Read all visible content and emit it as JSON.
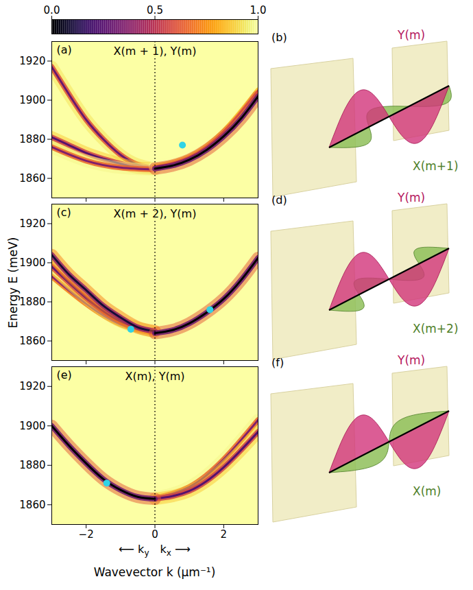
{
  "colorbar": {
    "range": [
      0,
      1
    ],
    "ticks": [
      {
        "value": 0,
        "label": "0.0"
      },
      {
        "value": 0.5,
        "label": "0.5"
      },
      {
        "value": 1,
        "label": "1.0"
      }
    ]
  },
  "y_label": "Energy E (meV)",
  "x_label": "Wavevector k (μm⁻¹)",
  "direction_labels": [
    {
      "text": "⟵ k",
      "subscript": "y"
    },
    {
      "text": "k",
      "subscript": "x",
      "suffix": " ⟶"
    }
  ],
  "chart_data": [
    {
      "type": "line",
      "label": "(a)",
      "title": "X(m + 1), Y(m)",
      "xlim": [
        -3,
        3
      ],
      "ylim": [
        1850,
        1930
      ],
      "xticks": [
        {
          "value": -2,
          "label": "−2"
        },
        0,
        2
      ],
      "yticks": [
        1860,
        1880,
        1900,
        1920
      ],
      "tick_labels": "y",
      "divider_x": 0,
      "curves": [
        {
          "intensity": 0.3,
          "points": [
            [
              -3,
              1917
            ],
            [
              -2.5,
              1903
            ],
            [
              -2,
              1890
            ],
            [
              -1.5,
              1880
            ],
            [
              -1,
              1872
            ],
            [
              -0.5,
              1867
            ],
            [
              0,
              1865
            ]
          ]
        },
        {
          "intensity": 0.25,
          "points": [
            [
              -3,
              1881
            ],
            [
              -2.5,
              1877
            ],
            [
              -2,
              1873
            ],
            [
              -1.5,
              1870
            ],
            [
              -1,
              1867.5
            ],
            [
              -0.5,
              1865.5
            ],
            [
              0,
              1865
            ]
          ]
        },
        {
          "intensity": 0.35,
          "points": [
            [
              -3,
              1876
            ],
            [
              -2,
              1869
            ],
            [
              -1,
              1865.5
            ],
            [
              0,
              1864.5
            ]
          ]
        },
        {
          "intensity": 0.55,
          "points": [
            [
              0,
              1866
            ],
            [
              1,
              1871
            ],
            [
              2,
              1884
            ],
            [
              3,
              1905
            ]
          ]
        },
        {
          "intensity": 0.0,
          "points": [
            [
              0,
              1865
            ],
            [
              0.5,
              1866.5
            ],
            [
              1,
              1869.5
            ],
            [
              1.5,
              1874.5
            ],
            [
              2,
              1881.5
            ],
            [
              2.5,
              1890.5
            ],
            [
              3,
              1902
            ]
          ]
        }
      ],
      "markers": {
        "color": "#2fd3e6",
        "marker": "circle",
        "points": [
          [
            0.8,
            1877
          ]
        ]
      }
    },
    {
      "type": "line",
      "label": "(c)",
      "title": "X(m + 2), Y(m)",
      "xlim": [
        -3,
        3
      ],
      "ylim": [
        1850,
        1930
      ],
      "xticks": [
        {
          "value": -2,
          "label": "−2"
        },
        0,
        2
      ],
      "yticks": [
        1860,
        1880,
        1900,
        1920
      ],
      "tick_labels": "y",
      "divider_x": 0,
      "curves": [
        {
          "intensity": 0.4,
          "points": [
            [
              -3,
              1893
            ],
            [
              -2,
              1879
            ],
            [
              -1,
              1868.5
            ],
            [
              0,
              1864
            ]
          ]
        },
        {
          "intensity": 0.3,
          "points": [
            [
              -3,
              1898
            ],
            [
              -2,
              1882
            ],
            [
              -1,
              1870
            ],
            [
              0,
              1864.5
            ]
          ]
        },
        {
          "intensity": 0.1,
          "points": [
            [
              -3,
              1904
            ],
            [
              -2.5,
              1894
            ],
            [
              -2,
              1886
            ],
            [
              -1.5,
              1878
            ],
            [
              -1,
              1872
            ],
            [
              -0.5,
              1867
            ],
            [
              0,
              1865
            ]
          ]
        },
        {
          "intensity": 0.0,
          "points": [
            [
              0,
              1864
            ],
            [
              0.5,
              1865.5
            ],
            [
              1,
              1869
            ],
            [
              1.5,
              1874.5
            ],
            [
              2,
              1881.5
            ],
            [
              2.5,
              1891
            ],
            [
              3,
              1902.5
            ]
          ]
        }
      ],
      "markers": {
        "color": "#2fd3e6",
        "marker": "circle",
        "points": [
          [
            -0.7,
            1866
          ],
          [
            1.6,
            1876
          ]
        ]
      }
    },
    {
      "type": "line",
      "label": "(e)",
      "title": "X(m), Y(m)",
      "xlim": [
        -3,
        3
      ],
      "ylim": [
        1850,
        1930
      ],
      "xticks": [
        {
          "value": -2,
          "label": "−2"
        },
        0,
        2
      ],
      "yticks": [
        1860,
        1880,
        1900,
        1920
      ],
      "divider_x": 0,
      "curves": [
        {
          "intensity": 0.35,
          "points": [
            [
              0,
              1863.5
            ],
            [
              1,
              1869
            ],
            [
              2,
              1883
            ],
            [
              3,
              1903
            ]
          ]
        },
        {
          "intensity": 0.25,
          "points": [
            [
              0,
              1863
            ],
            [
              1,
              1867
            ],
            [
              2,
              1879
            ],
            [
              3,
              1897
            ]
          ]
        },
        {
          "intensity": 0.0,
          "points": [
            [
              -3,
              1900
            ],
            [
              -2.5,
              1890
            ],
            [
              -2,
              1881
            ],
            [
              -1.5,
              1873
            ],
            [
              -1,
              1867.5
            ],
            [
              -0.5,
              1864
            ],
            [
              0,
              1863
            ]
          ]
        }
      ],
      "markers": {
        "color": "#2fd3e6",
        "marker": "circle",
        "points": [
          [
            -1.4,
            1871
          ]
        ]
      }
    }
  ],
  "diagrams": [
    {
      "label": "(b)",
      "mode_y": "Y(m)",
      "mode_x": "X(m+1)"
    },
    {
      "label": "(d)",
      "mode_y": "Y(m)",
      "mode_x": "X(m+2)"
    },
    {
      "label": "(f)",
      "mode_y": "Y(m)",
      "mode_x": "X(m)"
    }
  ]
}
